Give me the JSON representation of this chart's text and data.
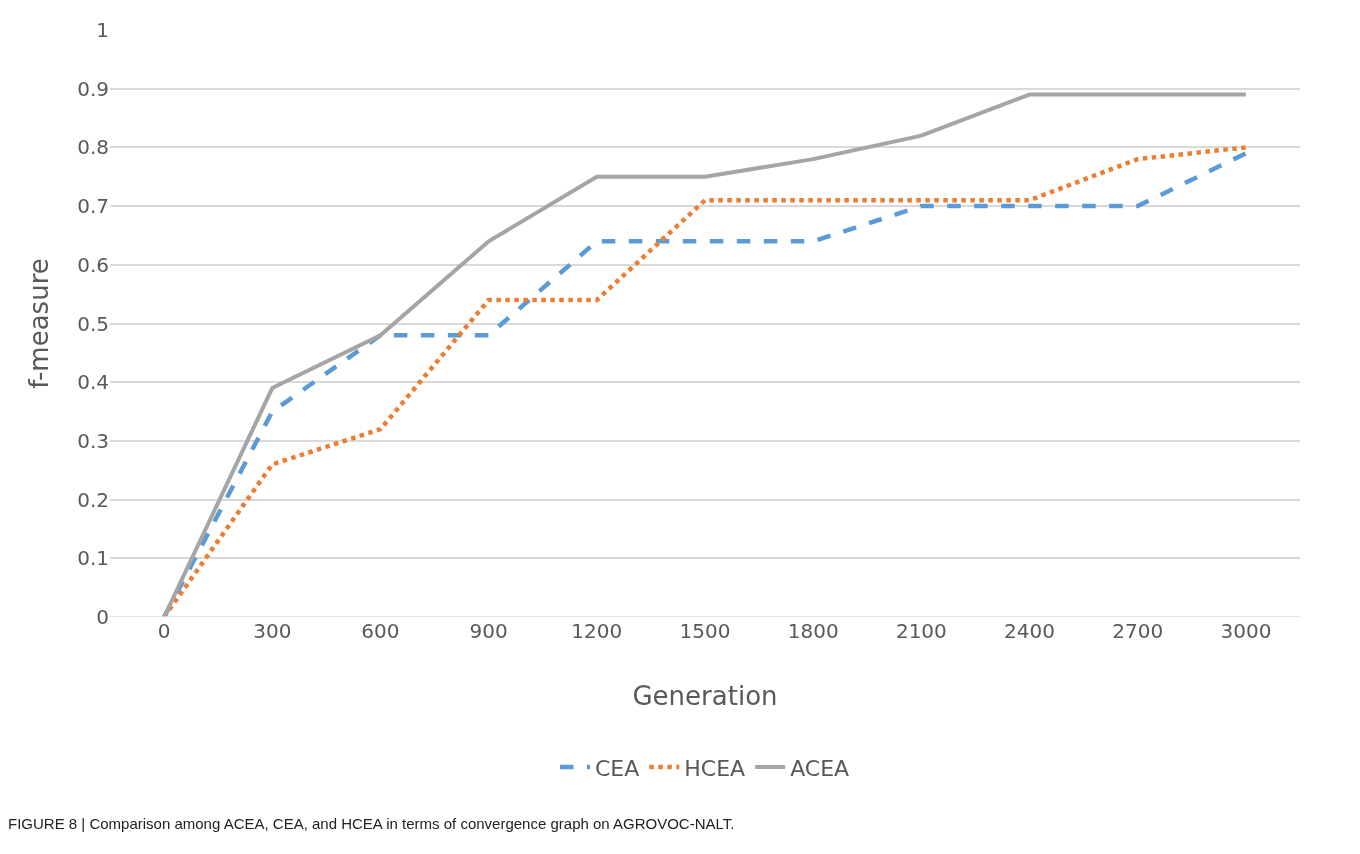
{
  "chart_data": {
    "type": "line",
    "xlabel": "Generation",
    "ylabel": "f-measure",
    "categories": [
      "0",
      "300",
      "600",
      "900",
      "1200",
      "1500",
      "1800",
      "2100",
      "2400",
      "2700",
      "3000"
    ],
    "series": [
      {
        "name": "CEA",
        "color": "#5b9bd5",
        "line_style": "dashed",
        "values": [
          0,
          0.35,
          0.48,
          0.48,
          0.64,
          0.64,
          0.64,
          0.7,
          0.7,
          0.7,
          0.79
        ]
      },
      {
        "name": "HCEA",
        "color": "#ed7d31",
        "line_style": "dotted",
        "values": [
          0,
          0.26,
          0.32,
          0.54,
          0.54,
          0.71,
          0.71,
          0.71,
          0.71,
          0.78,
          0.8
        ]
      },
      {
        "name": "ACEA",
        "color": "#a5a5a5",
        "line_style": "solid",
        "values": [
          0,
          0.39,
          0.48,
          0.64,
          0.75,
          0.75,
          0.78,
          0.82,
          0.89,
          0.89,
          0.89
        ]
      }
    ],
    "ylim": [
      0,
      1
    ],
    "yticks": [
      0,
      0.1,
      0.2,
      0.3,
      0.4,
      0.5,
      0.6,
      0.7,
      0.8,
      0.9,
      1
    ],
    "grid": "y",
    "legend": "bottom",
    "marker": "none",
    "annotations": [
      "FIGURE 8 | Comparison among ACEA, CEA, and HCEA in terms of convergence graph on AGROVOC-NALT."
    ]
  }
}
